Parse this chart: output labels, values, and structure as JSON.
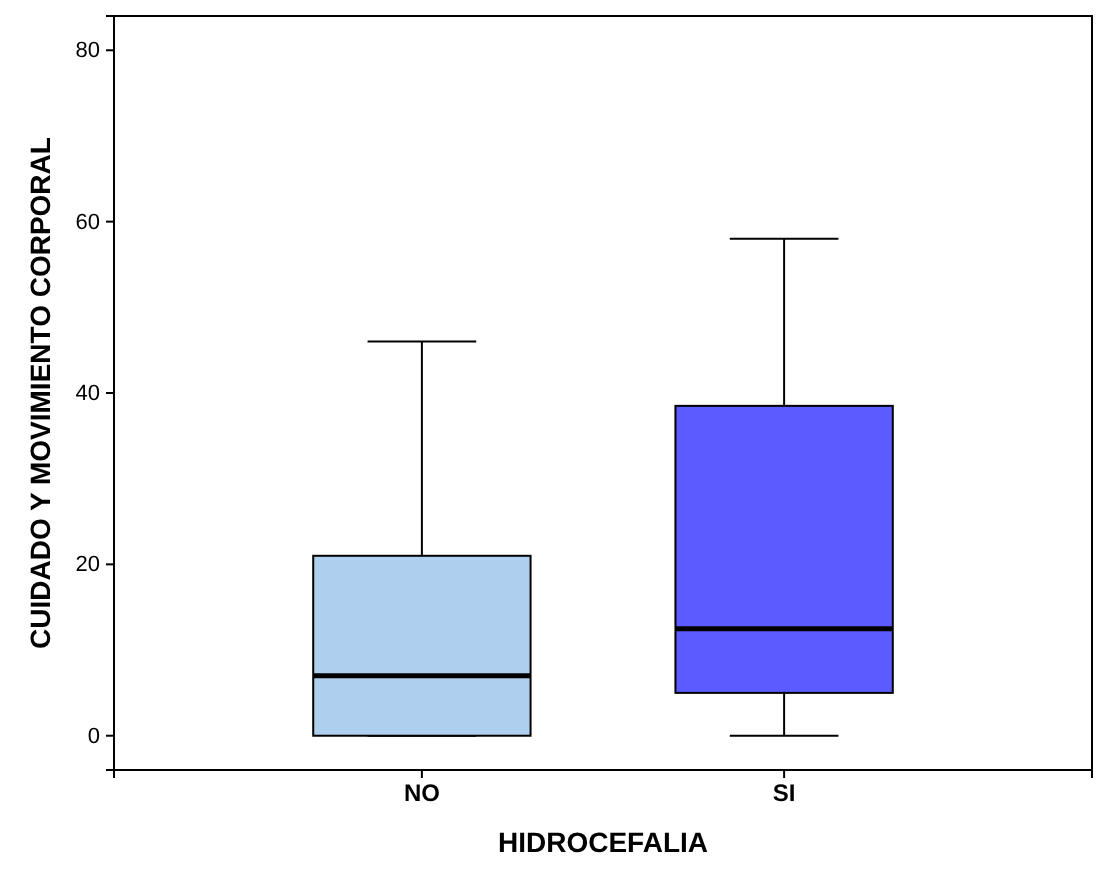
{
  "chart_data": {
    "type": "box",
    "xlabel": "HIDROCEFALIA",
    "ylabel": "CUIDADO Y MOVIMIENTO CORPORAL",
    "categories": [
      "NO",
      "SI"
    ],
    "colors": [
      "#aecfee",
      "#5b5bff"
    ],
    "boxes": [
      {
        "low": 0,
        "q1": 0,
        "median": 7,
        "q3": 21,
        "high": 46
      },
      {
        "low": 0,
        "q1": 5,
        "median": 12.5,
        "q3": 38.5,
        "high": 58
      }
    ],
    "ylim": [
      -4,
      84
    ],
    "yticks": [
      0,
      20,
      40,
      60,
      80
    ]
  }
}
